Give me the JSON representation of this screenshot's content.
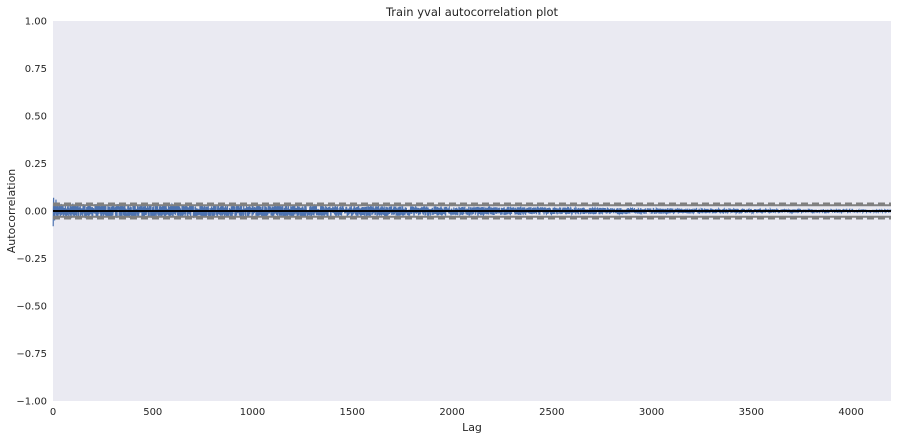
{
  "chart_data": {
    "type": "line",
    "title": "Train yval autocorrelation plot",
    "xlabel": "Lag",
    "ylabel": "Autocorrelation",
    "xlim": [
      0,
      4200
    ],
    "ylim": [
      -1.0,
      1.0
    ],
    "xticks": [
      0,
      500,
      1000,
      1500,
      2000,
      2500,
      3000,
      3500,
      4000
    ],
    "yticks": [
      -1.0,
      -0.75,
      -0.5,
      -0.25,
      0.0,
      0.25,
      0.5,
      0.75,
      1.0
    ],
    "ytick_labels": [
      "−1.00",
      "−0.75",
      "−0.50",
      "−0.25",
      "0.00",
      "0.25",
      "0.50",
      "0.75",
      "1.00"
    ],
    "xtick_labels": [
      "0",
      "500",
      "1000",
      "1500",
      "2000",
      "2500",
      "3000",
      "3500",
      "4000"
    ],
    "grid": false,
    "background_color": "#eaeaf2",
    "series_color": "#4c72b0",
    "reference_line_color": "#808080",
    "n_lags": 4200,
    "confidence_bands": {
      "z95": 0.0302,
      "z99": 0.0397
    },
    "series": [
      {
        "values_envelope": {
          "description_points": [
            {
              "lag": 1,
              "value": -0.08
            },
            {
              "lag": 3,
              "value": 0.07
            },
            {
              "lag": 8,
              "value": -0.05
            },
            {
              "lag": 15,
              "value": 0.06
            }
          ],
          "amplitude_start": 0.04,
          "amplitude_end": 0.005
        }
      }
    ]
  }
}
